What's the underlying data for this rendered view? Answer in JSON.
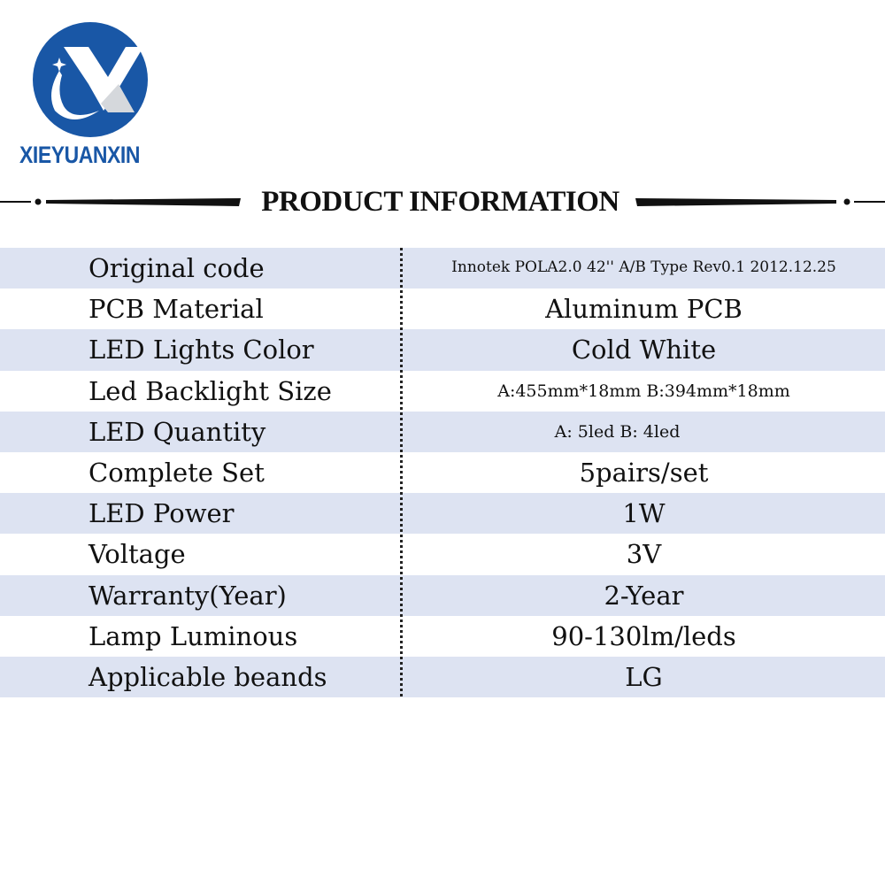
{
  "brand": {
    "name": "XIEYUANXIN",
    "color": "#1957a6"
  },
  "header": {
    "title": "PRODUCT INFORMATION"
  },
  "table": {
    "band_color": "#dde3f2",
    "rows": [
      {
        "label": "Original code",
        "value": "Innotek POLA2.0 42'' A/B Type Rev0.1 2012.12.25"
      },
      {
        "label": "PCB Material",
        "value": "Aluminum PCB"
      },
      {
        "label": "LED Lights Color",
        "value": "Cold White"
      },
      {
        "label": "Led Backlight Size",
        "value": "A:455mm*18mm  B:394mm*18mm"
      },
      {
        "label": "LED Quantity",
        "value": "A: 5led B: 4led"
      },
      {
        "label": "Complete Set",
        "value": "5pairs/set"
      },
      {
        "label": "LED Power",
        "value": "1W"
      },
      {
        "label": "Voltage",
        "value": "3V"
      },
      {
        "label": "Warranty(Year)",
        "value": "2-Year"
      },
      {
        "label": "Lamp Luminous",
        "value": "90-130lm/leds"
      },
      {
        "label": "Applicable beands",
        "value": "LG"
      }
    ]
  }
}
